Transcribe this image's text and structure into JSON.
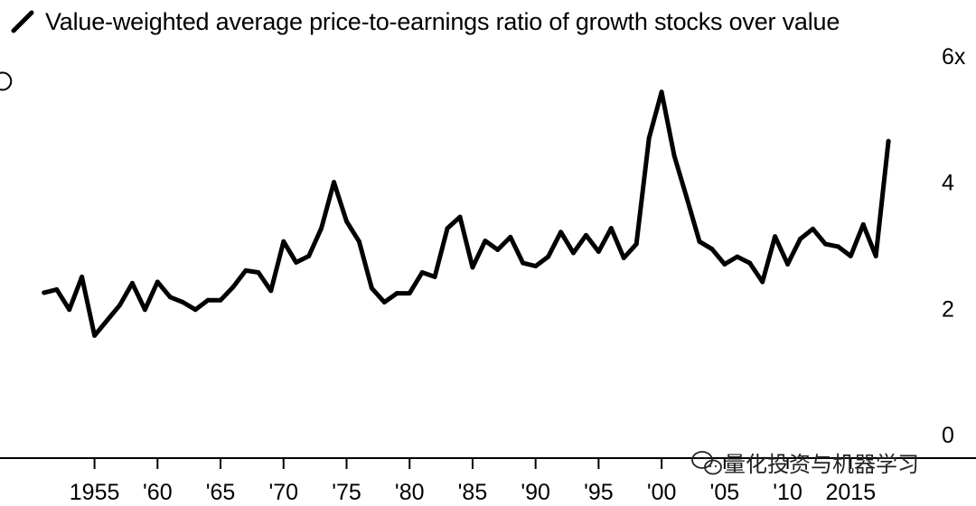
{
  "chart_data": {
    "type": "line",
    "title": "",
    "xlabel": "",
    "ylabel": "",
    "legend": {
      "position": "top-left",
      "entries": [
        "Value-weighted average price-to-earnings ratio of growth stocks over value"
      ]
    },
    "series": [
      {
        "name": "Value-weighted average price-to-earnings ratio of growth stocks over value",
        "color": "#000000",
        "x": [
          1951,
          1952,
          1953,
          1954,
          1955,
          1956,
          1957,
          1958,
          1959,
          1960,
          1961,
          1962,
          1963,
          1964,
          1965,
          1966,
          1967,
          1968,
          1969,
          1970,
          1971,
          1972,
          1973,
          1974,
          1975,
          1976,
          1977,
          1978,
          1979,
          1980,
          1981,
          1982,
          1983,
          1984,
          1985,
          1986,
          1987,
          1988,
          1989,
          1990,
          1991,
          1992,
          1993,
          1994,
          1995,
          1996,
          1997,
          1998,
          1999,
          2000,
          2001,
          2002,
          2003,
          2004,
          2005,
          2006,
          2007,
          2008,
          2009,
          2010,
          2011,
          2012,
          2013,
          2014,
          2015,
          2016,
          2017,
          2018
        ],
        "values": [
          2.25,
          2.3,
          1.98,
          2.5,
          1.57,
          1.81,
          2.05,
          2.4,
          1.98,
          2.42,
          2.18,
          2.1,
          1.98,
          2.13,
          2.13,
          2.34,
          2.6,
          2.57,
          2.28,
          3.06,
          2.73,
          2.83,
          3.27,
          4.0,
          3.38,
          3.06,
          2.32,
          2.1,
          2.24,
          2.24,
          2.57,
          2.5,
          3.27,
          3.45,
          2.65,
          3.07,
          2.93,
          3.13,
          2.72,
          2.67,
          2.82,
          3.21,
          2.88,
          3.16,
          2.9,
          3.27,
          2.8,
          3.02,
          4.7,
          5.43,
          4.42,
          3.75,
          3.06,
          2.94,
          2.7,
          2.82,
          2.72,
          2.42,
          3.14,
          2.7,
          3.1,
          3.26,
          3.02,
          2.98,
          2.83,
          3.33,
          2.83,
          4.65
        ]
      }
    ],
    "x_ticks": [
      {
        "year": 1955,
        "label": "1955"
      },
      {
        "year": 1960,
        "label": "'60"
      },
      {
        "year": 1965,
        "label": "'65"
      },
      {
        "year": 1970,
        "label": "'70"
      },
      {
        "year": 1975,
        "label": "'75"
      },
      {
        "year": 1980,
        "label": "'80"
      },
      {
        "year": 1985,
        "label": "'85"
      },
      {
        "year": 1990,
        "label": "'90"
      },
      {
        "year": 1995,
        "label": "'95"
      },
      {
        "year": 2000,
        "label": "'00"
      },
      {
        "year": 2005,
        "label": "'05"
      },
      {
        "year": 2010,
        "label": "'10"
      },
      {
        "year": 2015,
        "label": "2015"
      }
    ],
    "y_ticks": [
      {
        "value": 6,
        "label": "6x"
      },
      {
        "value": 4,
        "label": "4"
      },
      {
        "value": 2,
        "label": "2"
      },
      {
        "value": 0,
        "label": "0"
      }
    ],
    "xlim": [
      1947.5,
      2020.5
    ],
    "ylim": [
      0,
      6
    ],
    "grid": false,
    "annotations": [
      {
        "type": "marker",
        "shape": "open-circle",
        "x": 1947.7,
        "y": 5.6
      }
    ]
  },
  "watermark": {
    "text": "量化投资与机器学习",
    "icon": "wechat-icon"
  }
}
